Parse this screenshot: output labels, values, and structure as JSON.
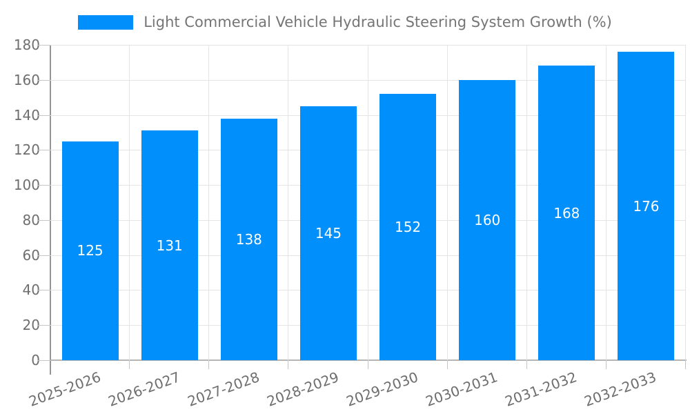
{
  "legend": {
    "series_label": "Light Commercial Vehicle Hydraulic Steering System Growth (%)",
    "swatch_color": "#008FFB"
  },
  "chart_data": {
    "type": "bar",
    "title": "Light Commercial Vehicle Hydraulic Steering System Growth (%)",
    "categories": [
      "2025-2026",
      "2026-2027",
      "2027-2028",
      "2028-2029",
      "2029-2030",
      "2030-2031",
      "2031-2032",
      "2032-2033"
    ],
    "series": [
      {
        "name": "Light Commercial Vehicle Hydraulic Steering System Growth (%)",
        "values": [
          125,
          131,
          138,
          145,
          152,
          160,
          168,
          176
        ]
      }
    ],
    "bar_value_labels": [
      "125",
      "131",
      "138",
      "145",
      "152",
      "160",
      "168",
      "176"
    ],
    "xlabel": "",
    "ylabel": "",
    "ylim": [
      0,
      180
    ],
    "yticks": [
      0,
      20,
      40,
      60,
      80,
      100,
      120,
      140,
      160,
      180
    ],
    "grid": true,
    "legend_position": "top",
    "x_label_rotation_deg": -20,
    "colors": {
      "bar": "#008FFB",
      "bar_value_label": "#FFFFFF",
      "grid": "#e4e4e4",
      "y_axis_line": "#949494",
      "x_axis_line": "#b5b5b5",
      "tick": "#c6c6c6",
      "tick_label": "#6e6e6e",
      "legend_text": "#757575"
    }
  }
}
